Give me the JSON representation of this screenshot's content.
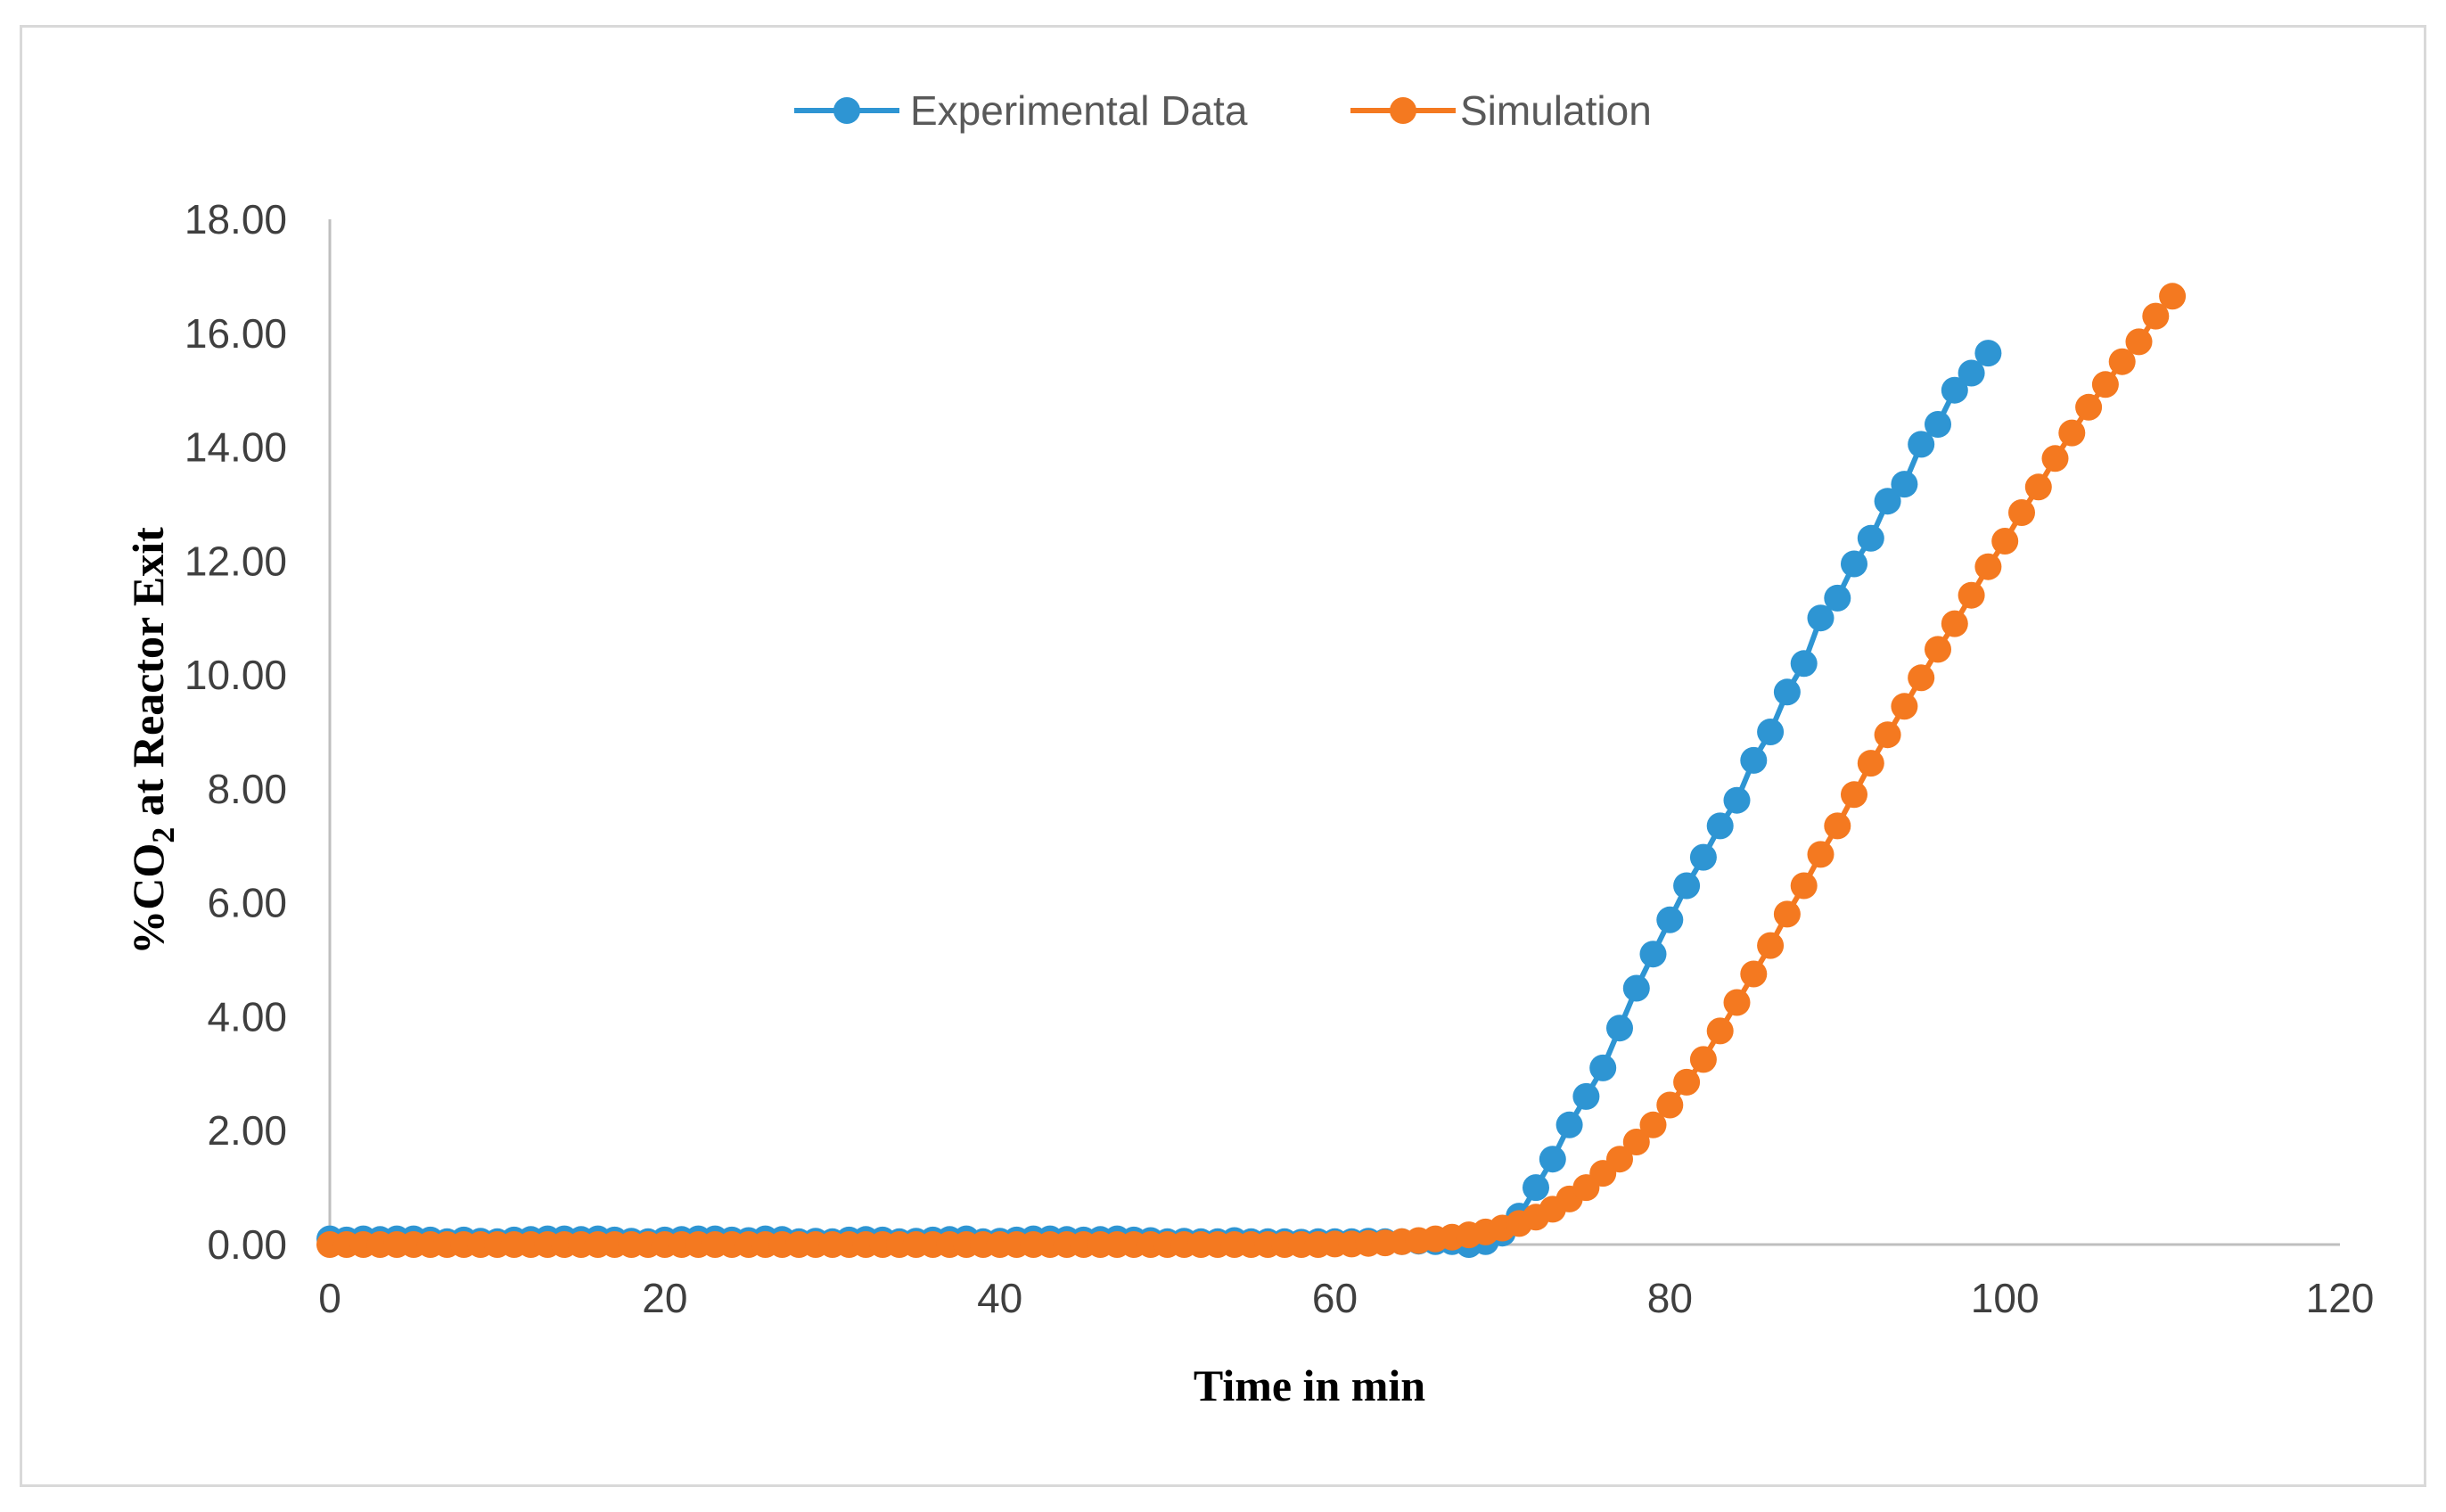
{
  "chart_data": {
    "type": "line",
    "title": "",
    "xlabel": "Time in min",
    "ylabel_parts": {
      "prefix": "%CO",
      "subscript": "2",
      "suffix": " at Reactor Exit"
    },
    "xlim": [
      0,
      120
    ],
    "ylim": [
      0,
      18
    ],
    "x_ticks": [
      0,
      20,
      40,
      60,
      80,
      100,
      120
    ],
    "y_ticks": [
      "0.00",
      "2.00",
      "4.00",
      "6.00",
      "8.00",
      "10.00",
      "12.00",
      "14.00",
      "16.00",
      "18.00"
    ],
    "grid": false,
    "legend_position": "top-center",
    "series": [
      {
        "name": "Experimental Data",
        "color": "#2e95d3",
        "x": [
          0,
          1,
          2,
          3,
          4,
          5,
          6,
          7,
          8,
          9,
          10,
          11,
          12,
          13,
          14,
          15,
          16,
          17,
          18,
          19,
          20,
          21,
          22,
          23,
          24,
          25,
          26,
          27,
          28,
          29,
          30,
          31,
          32,
          33,
          34,
          35,
          36,
          37,
          38,
          39,
          40,
          41,
          42,
          43,
          44,
          45,
          46,
          47,
          48,
          49,
          50,
          51,
          52,
          53,
          54,
          55,
          56,
          57,
          58,
          59,
          60,
          61,
          62,
          63,
          64,
          65,
          66,
          67,
          68,
          69,
          70,
          71,
          72,
          73,
          74,
          75,
          76,
          77,
          78,
          79,
          80,
          81,
          82,
          83,
          84,
          85,
          86,
          87,
          88,
          89,
          90,
          91,
          92,
          93,
          94,
          95,
          96,
          97,
          98,
          99
        ],
        "y": [
          0.1,
          0.08,
          0.1,
          0.09,
          0.1,
          0.1,
          0.08,
          0.05,
          0.08,
          0.06,
          0.05,
          0.08,
          0.09,
          0.1,
          0.1,
          0.09,
          0.1,
          0.08,
          0.06,
          0.05,
          0.08,
          0.09,
          0.1,
          0.1,
          0.08,
          0.07,
          0.1,
          0.09,
          0.05,
          0.06,
          0.05,
          0.08,
          0.09,
          0.08,
          0.05,
          0.06,
          0.08,
          0.09,
          0.1,
          0.05,
          0.06,
          0.08,
          0.1,
          0.1,
          0.09,
          0.08,
          0.09,
          0.1,
          0.08,
          0.07,
          0.05,
          0.06,
          0.05,
          0.05,
          0.07,
          0.05,
          0.05,
          0.05,
          0.04,
          0.05,
          0.05,
          0.05,
          0.06,
          0.05,
          0.05,
          0.06,
          0.05,
          0.05,
          0.0,
          0.05,
          0.2,
          0.5,
          1.0,
          1.5,
          2.1,
          2.6,
          3.1,
          3.8,
          4.5,
          5.1,
          5.7,
          6.3,
          6.8,
          7.35,
          7.8,
          8.5,
          9.0,
          9.7,
          10.2,
          11.0,
          11.35,
          11.95,
          12.4,
          13.05,
          13.35,
          14.05,
          14.4,
          15.0,
          15.3,
          15.65
        ]
      },
      {
        "name": "Simulation",
        "color": "#f47920",
        "x": [
          0,
          1,
          2,
          3,
          4,
          5,
          6,
          7,
          8,
          9,
          10,
          11,
          12,
          13,
          14,
          15,
          16,
          17,
          18,
          19,
          20,
          21,
          22,
          23,
          24,
          25,
          26,
          27,
          28,
          29,
          30,
          31,
          32,
          33,
          34,
          35,
          36,
          37,
          38,
          39,
          40,
          41,
          42,
          43,
          44,
          45,
          46,
          47,
          48,
          49,
          50,
          51,
          52,
          53,
          54,
          55,
          56,
          57,
          58,
          59,
          60,
          61,
          62,
          63,
          64,
          65,
          66,
          67,
          68,
          69,
          70,
          71,
          72,
          73,
          74,
          75,
          76,
          77,
          78,
          79,
          80,
          81,
          82,
          83,
          84,
          85,
          86,
          87,
          88,
          89,
          90,
          91,
          92,
          93,
          94,
          95,
          96,
          97,
          98,
          99,
          100,
          101,
          102,
          103,
          104,
          105,
          106,
          107,
          108,
          109,
          110
        ],
        "y": [
          0,
          0,
          0,
          0,
          0,
          0,
          0,
          0,
          0,
          0,
          0,
          0,
          0,
          0,
          0,
          0,
          0,
          0,
          0,
          0,
          0,
          0,
          0,
          0,
          0,
          0,
          0,
          0,
          0,
          0,
          0,
          0,
          0,
          0,
          0,
          0,
          0,
          0,
          0,
          0,
          0,
          0,
          0,
          0,
          0,
          0,
          0,
          0,
          0,
          0,
          0,
          0,
          0,
          0,
          0,
          0,
          0,
          0,
          0,
          0,
          0.01,
          0.01,
          0.02,
          0.03,
          0.05,
          0.07,
          0.1,
          0.13,
          0.17,
          0.22,
          0.29,
          0.37,
          0.48,
          0.62,
          0.8,
          1.0,
          1.25,
          1.5,
          1.8,
          2.1,
          2.45,
          2.85,
          3.25,
          3.75,
          4.25,
          4.75,
          5.25,
          5.8,
          6.3,
          6.85,
          7.35,
          7.9,
          8.45,
          8.95,
          9.45,
          9.95,
          10.45,
          10.9,
          11.4,
          11.9,
          12.35,
          12.85,
          13.3,
          13.8,
          14.25,
          14.7,
          15.1,
          15.5,
          15.85,
          16.3,
          16.65
        ]
      }
    ]
  }
}
